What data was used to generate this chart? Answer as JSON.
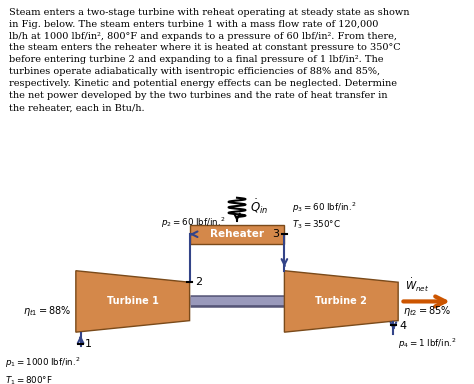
{
  "text_block": "Steam enters a two-stage turbine with reheat operating at steady state as shown\nin Fig. below. The steam enters turbine 1 with a mass flow rate of 120,000\nlb/h at 1000 lbf/in², 800°F and expands to a pressure of 60 lbf/in². From there,\nthe steam enters the reheater where it is heated at constant pressure to 350°C\nbefore entering turbine 2 and expanding to a final pressure of 1 lbf/in². The\nturbines operate adiabatically with isentropic efficiencies of 88% and 85%,\nrespectively. Kinetic and potential energy effects can be neglected. Determine\nthe net power developed by the two turbines and the rate of heat transfer in\nthe reheater, each in Btu/h.",
  "box_color": "#D4884A",
  "box_edge": "#7A4A1A",
  "shaft_color_dark": "#8888aa",
  "shaft_color_light": "#bbbbcc",
  "pipe_color": "#334488",
  "arrow_color": "#334488",
  "wnet_arrow_color": "#CC5500",
  "text_color": "#000000"
}
